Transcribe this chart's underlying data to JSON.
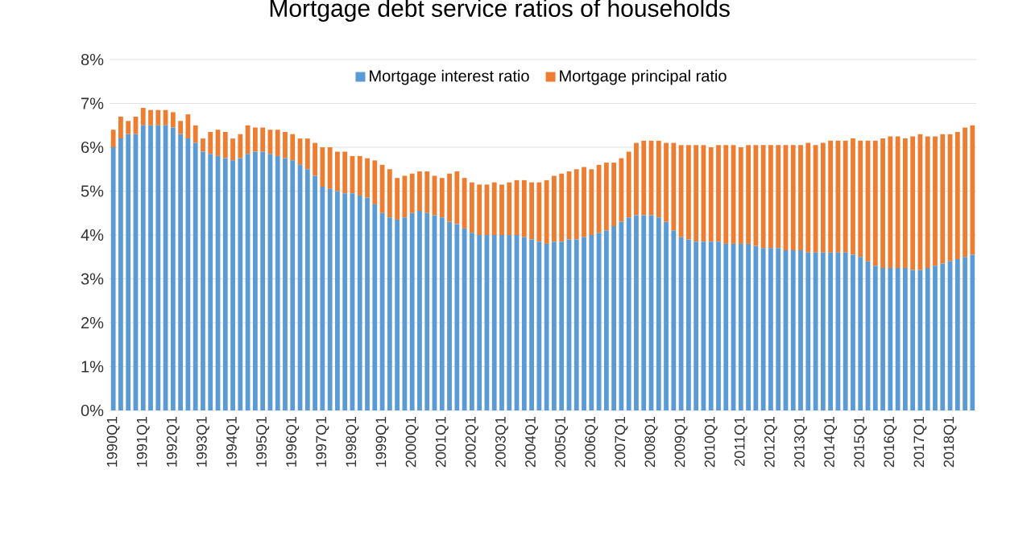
{
  "chart_data": {
    "type": "bar",
    "stacked": true,
    "title": "Mortgage debt service ratios of households",
    "categories": [
      "1990Q1",
      null,
      null,
      null,
      "1991Q1",
      null,
      null,
      null,
      "1992Q1",
      null,
      null,
      null,
      "1993Q1",
      null,
      null,
      null,
      "1994Q1",
      null,
      null,
      null,
      "1995Q1",
      null,
      null,
      null,
      "1996Q1",
      null,
      null,
      null,
      "1997Q1",
      null,
      null,
      null,
      "1998Q1",
      null,
      null,
      null,
      "1999Q1",
      null,
      null,
      null,
      "2000Q1",
      null,
      null,
      null,
      "2001Q1",
      null,
      null,
      null,
      "2002Q1",
      null,
      null,
      null,
      "2003Q1",
      null,
      null,
      null,
      "2004Q1",
      null,
      null,
      null,
      "2005Q1",
      null,
      null,
      null,
      "2006Q1",
      null,
      null,
      null,
      "2007Q1",
      null,
      null,
      null,
      "2008Q1",
      null,
      null,
      null,
      "2009Q1",
      null,
      null,
      null,
      "2010Q1",
      null,
      null,
      null,
      "2011Q1",
      null,
      null,
      null,
      "2012Q1",
      null,
      null,
      null,
      "2013Q1",
      null,
      null,
      null,
      "2014Q1",
      null,
      null,
      null,
      "2015Q1",
      null,
      null,
      null,
      "2016Q1",
      null,
      null,
      null,
      "2017Q1",
      null,
      null,
      null,
      "2018Q1",
      null,
      null,
      null
    ],
    "series": [
      {
        "name": "Mortgage interest ratio",
        "color": "#5b9bd5",
        "values": [
          6.0,
          6.2,
          6.3,
          6.3,
          6.5,
          6.5,
          6.5,
          6.5,
          6.45,
          6.3,
          6.2,
          6.1,
          5.9,
          5.85,
          5.8,
          5.75,
          5.7,
          5.75,
          5.85,
          5.9,
          5.9,
          5.85,
          5.8,
          5.75,
          5.7,
          5.6,
          5.5,
          5.35,
          5.1,
          5.05,
          5.0,
          4.95,
          4.95,
          4.9,
          4.85,
          4.7,
          4.5,
          4.4,
          4.35,
          4.4,
          4.5,
          4.55,
          4.5,
          4.45,
          4.4,
          4.3,
          4.25,
          4.15,
          4.05,
          4.0,
          4.0,
          4.0,
          4.0,
          4.0,
          4.0,
          3.95,
          3.9,
          3.85,
          3.8,
          3.85,
          3.85,
          3.9,
          3.9,
          3.95,
          4.0,
          4.05,
          4.1,
          4.2,
          4.3,
          4.4,
          4.45,
          4.45,
          4.45,
          4.4,
          4.3,
          4.1,
          3.95,
          3.9,
          3.85,
          3.85,
          3.85,
          3.85,
          3.8,
          3.8,
          3.8,
          3.8,
          3.75,
          3.7,
          3.7,
          3.7,
          3.65,
          3.65,
          3.65,
          3.6,
          3.6,
          3.6,
          3.6,
          3.6,
          3.6,
          3.55,
          3.5,
          3.4,
          3.3,
          3.25,
          3.25,
          3.25,
          3.25,
          3.2,
          3.2,
          3.25,
          3.3,
          3.35,
          3.4,
          3.45,
          3.5,
          3.55
        ]
      },
      {
        "name": "Mortgage principal ratio",
        "color": "#ed7d31",
        "values": [
          0.4,
          0.5,
          0.3,
          0.4,
          0.4,
          0.35,
          0.35,
          0.35,
          0.35,
          0.3,
          0.55,
          0.4,
          0.3,
          0.5,
          0.6,
          0.6,
          0.5,
          0.55,
          0.65,
          0.55,
          0.55,
          0.55,
          0.6,
          0.6,
          0.6,
          0.6,
          0.7,
          0.75,
          0.9,
          0.95,
          0.9,
          0.95,
          0.85,
          0.9,
          0.9,
          1.0,
          1.1,
          1.1,
          0.95,
          0.95,
          0.9,
          0.9,
          0.95,
          0.9,
          0.9,
          1.1,
          1.2,
          1.15,
          1.15,
          1.15,
          1.15,
          1.2,
          1.15,
          1.2,
          1.25,
          1.3,
          1.3,
          1.35,
          1.45,
          1.5,
          1.55,
          1.55,
          1.6,
          1.6,
          1.5,
          1.55,
          1.55,
          1.45,
          1.45,
          1.5,
          1.65,
          1.7,
          1.7,
          1.75,
          1.8,
          2.0,
          2.1,
          2.15,
          2.2,
          2.2,
          2.15,
          2.2,
          2.25,
          2.25,
          2.2,
          2.25,
          2.3,
          2.35,
          2.35,
          2.35,
          2.4,
          2.4,
          2.4,
          2.5,
          2.45,
          2.5,
          2.55,
          2.55,
          2.55,
          2.65,
          2.65,
          2.75,
          2.85,
          2.95,
          3.0,
          3.0,
          2.95,
          3.05,
          3.1,
          3.0,
          2.95,
          2.95,
          2.9,
          2.9,
          2.95,
          2.95
        ]
      }
    ],
    "ylim": [
      0,
      8
    ],
    "yticks": [
      {
        "value": 0,
        "label": "0%"
      },
      {
        "value": 1,
        "label": "1%"
      },
      {
        "value": 2,
        "label": "2%"
      },
      {
        "value": 3,
        "label": "3%"
      },
      {
        "value": 4,
        "label": "4%"
      },
      {
        "value": 5,
        "label": "5%"
      },
      {
        "value": 6,
        "label": "6%"
      },
      {
        "value": 7,
        "label": "7%"
      },
      {
        "value": 8,
        "label": "8%"
      }
    ],
    "grid": "y",
    "legend": "top"
  }
}
